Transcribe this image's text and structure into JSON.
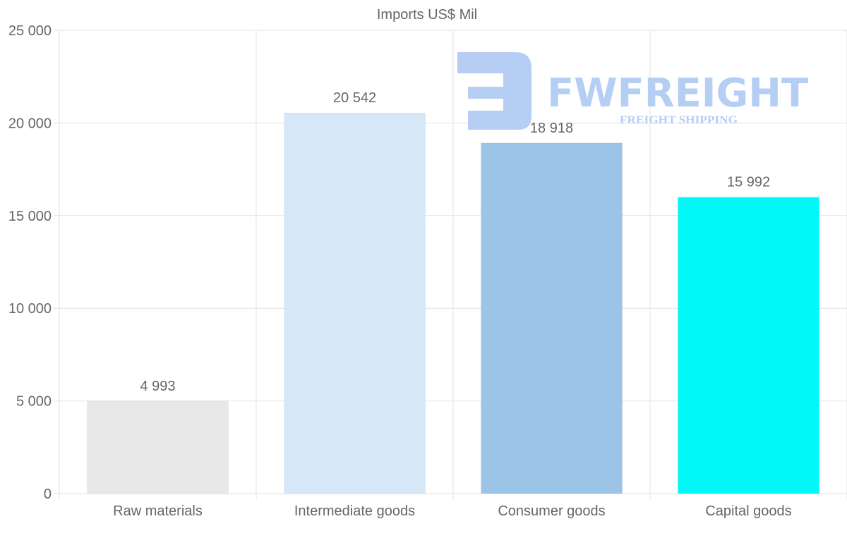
{
  "chart_data": {
    "type": "bar",
    "title": "Imports US$ Mil",
    "categories": [
      "Raw materials",
      "Intermediate goods",
      "Consumer goods",
      "Capital goods"
    ],
    "values": [
      4993,
      20542,
      18918,
      15992
    ],
    "value_labels": [
      "4 993",
      "20 542",
      "18 918",
      "15 992"
    ],
    "colors": [
      "#e8e8e8",
      "#d6e7f8",
      "#9bc4e6",
      "#00f8f8"
    ],
    "xlabel": "",
    "ylabel": "",
    "ylim": [
      0,
      25000
    ],
    "yticks": [
      0,
      5000,
      10000,
      15000,
      20000,
      25000
    ],
    "ytick_labels": [
      "0",
      "5 000",
      "10 000",
      "15 000",
      "20 000",
      "25 000"
    ],
    "grid": true,
    "legend": "none"
  },
  "watermark": {
    "brand": "FWFREIGHT",
    "tagline": "FREIGHT SHIPPING",
    "color": "#a9c6f1"
  }
}
